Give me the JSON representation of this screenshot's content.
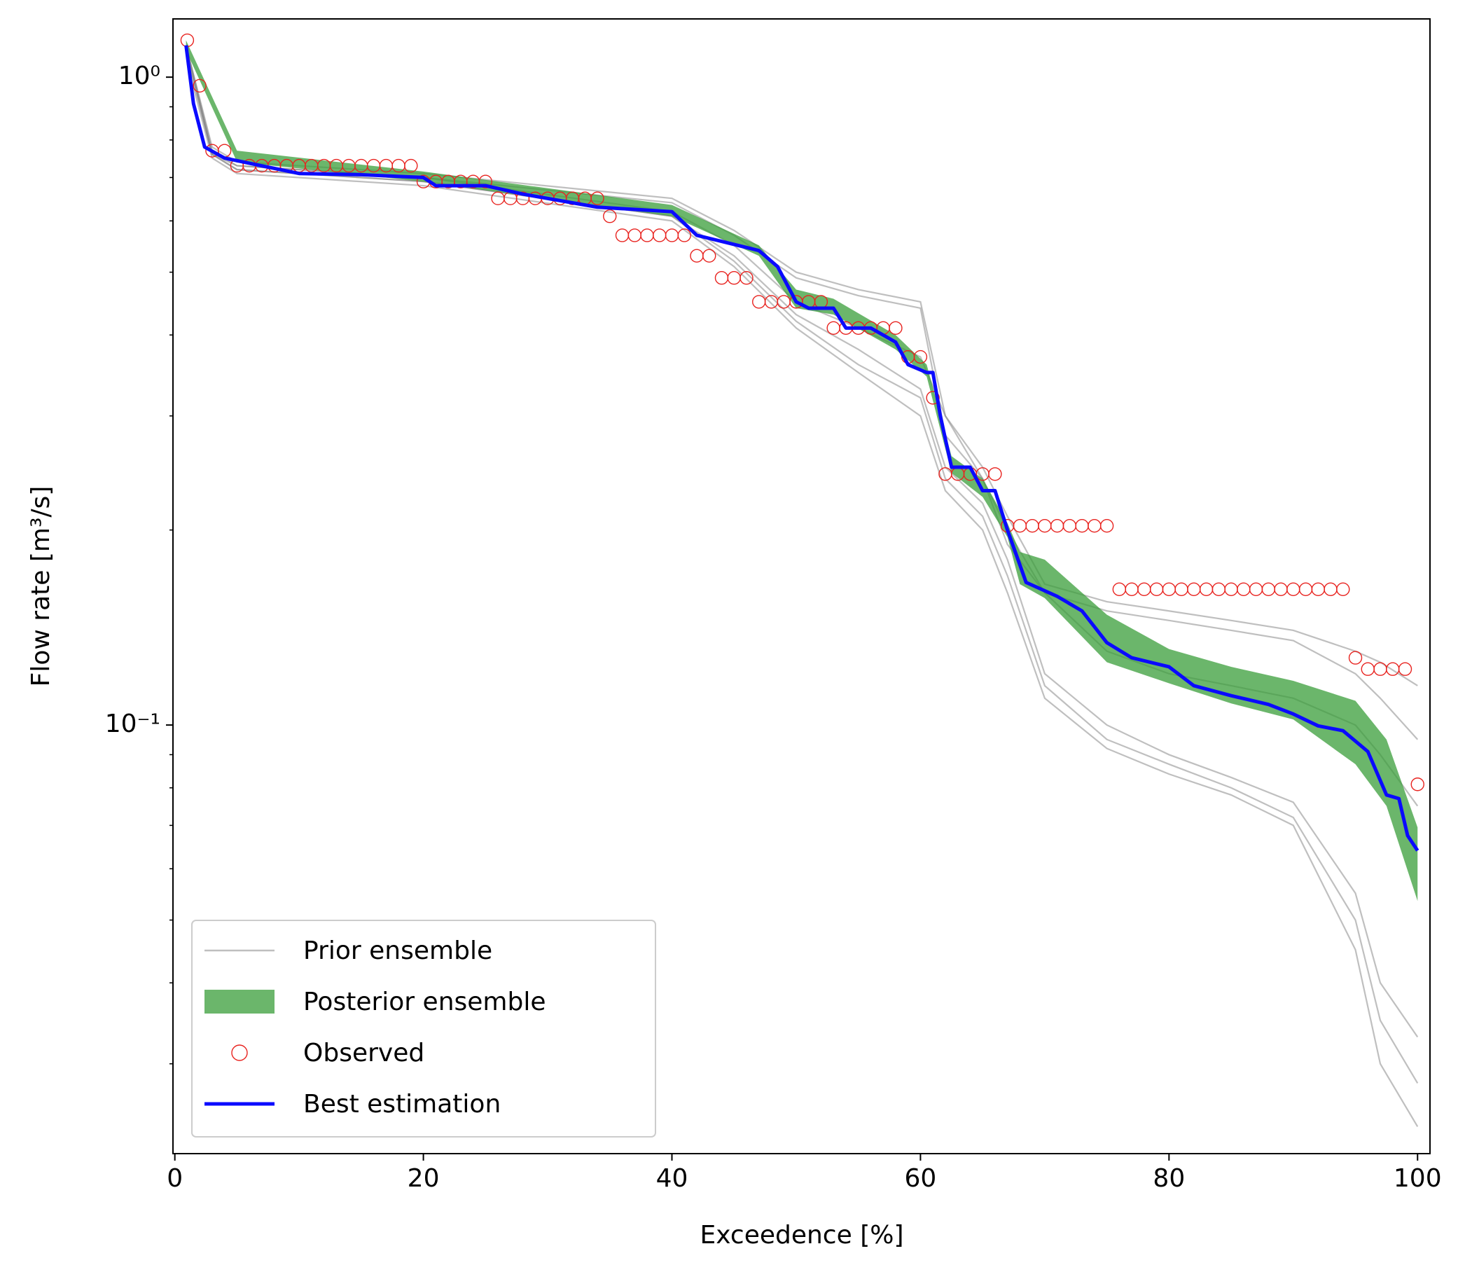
{
  "chart_data": {
    "type": "line",
    "title_x": "Exceedence [%]",
    "title_y": "Flow rate [m³/s]",
    "xlim": [
      -0.15,
      101
    ],
    "xticks": [
      0,
      20,
      40,
      60,
      80,
      100
    ],
    "ylim": [
      0.0218,
      1.23
    ],
    "yscale": "log",
    "yticks": [
      {
        "value": 0.1,
        "label": "10⁻¹"
      },
      {
        "value": 1,
        "label": "10⁰"
      }
    ],
    "yminorticks": [
      0.03,
      0.04,
      0.05,
      0.06,
      0.07,
      0.08,
      0.09,
      0.2,
      0.3,
      0.4,
      0.5,
      0.6,
      0.7,
      0.8,
      0.9
    ],
    "legend": "lower left",
    "series": [
      {
        "name": "Prior ensemble",
        "kind": "lines",
        "color": "#808080",
        "x": [
          1,
          3,
          5,
          20,
          40,
          45,
          50,
          55,
          60,
          62,
          65,
          67,
          70,
          75,
          80,
          85,
          90,
          95,
          97,
          100
        ],
        "lines": [
          [
            1.1,
            0.78,
            0.74,
            0.71,
            0.65,
            0.58,
            0.5,
            0.47,
            0.45,
            0.3,
            0.25,
            0.21,
            0.165,
            0.155,
            0.15,
            0.145,
            0.14,
            0.13,
            0.125,
            0.115
          ],
          [
            1.08,
            0.76,
            0.73,
            0.7,
            0.64,
            0.57,
            0.49,
            0.46,
            0.44,
            0.28,
            0.24,
            0.2,
            0.16,
            0.15,
            0.145,
            0.14,
            0.135,
            0.12,
            0.11,
            0.095
          ],
          [
            1.1,
            0.77,
            0.73,
            0.7,
            0.62,
            0.55,
            0.45,
            0.41,
            0.37,
            0.3,
            0.24,
            0.19,
            0.16,
            0.13,
            0.12,
            0.115,
            0.11,
            0.1,
            0.09,
            0.075
          ],
          [
            1.1,
            0.76,
            0.72,
            0.69,
            0.61,
            0.52,
            0.42,
            0.36,
            0.32,
            0.24,
            0.21,
            0.17,
            0.115,
            0.095,
            0.087,
            0.08,
            0.072,
            0.05,
            0.035,
            0.028
          ],
          [
            1.05,
            0.75,
            0.71,
            0.68,
            0.6,
            0.51,
            0.41,
            0.35,
            0.3,
            0.23,
            0.2,
            0.16,
            0.11,
            0.092,
            0.084,
            0.078,
            0.07,
            0.045,
            0.03,
            0.024
          ],
          [
            1.08,
            0.76,
            0.72,
            0.69,
            0.61,
            0.53,
            0.43,
            0.38,
            0.33,
            0.25,
            0.22,
            0.18,
            0.12,
            0.1,
            0.09,
            0.083,
            0.076,
            0.055,
            0.04,
            0.033
          ]
        ]
      },
      {
        "name": "Posterior ensemble",
        "kind": "band",
        "color": "#3a9e3a",
        "x": [
          0.9,
          5,
          20,
          40,
          47,
          50,
          53,
          58,
          60.5,
          62.5,
          65,
          67,
          68,
          70,
          75,
          80,
          85,
          90,
          95,
          97.5,
          100
        ],
        "upper": [
          1.14,
          0.77,
          0.715,
          0.635,
          0.55,
          0.47,
          0.455,
          0.4,
          0.36,
          0.26,
          0.24,
          0.205,
          0.185,
          0.18,
          0.148,
          0.131,
          0.123,
          0.117,
          0.109,
          0.095,
          0.0695
        ],
        "lower": [
          1.1,
          0.74,
          0.69,
          0.61,
          0.53,
          0.44,
          0.43,
          0.38,
          0.345,
          0.245,
          0.225,
          0.195,
          0.165,
          0.157,
          0.125,
          0.116,
          0.108,
          0.102,
          0.087,
          0.075,
          0.0535
        ]
      },
      {
        "name": "Observed",
        "kind": "points",
        "color": "#e8231f",
        "x": [
          1,
          2,
          3,
          4,
          5,
          6,
          7,
          8,
          9,
          10,
          11,
          12,
          13,
          14,
          15,
          16,
          17,
          18,
          19,
          20,
          21,
          22,
          23,
          24,
          25,
          26,
          27,
          28,
          29,
          30,
          31,
          32,
          33,
          34,
          35,
          36,
          37,
          38,
          39,
          40,
          41,
          42,
          43,
          44,
          45,
          46,
          47,
          48,
          49,
          50,
          51,
          52,
          53,
          54,
          55,
          56,
          57,
          58,
          59,
          60,
          61,
          62,
          63,
          64,
          65,
          66,
          67,
          68,
          69,
          70,
          71,
          72,
          73,
          74,
          75,
          76,
          77,
          78,
          79,
          80,
          81,
          82,
          83,
          84,
          85,
          86,
          87,
          88,
          89,
          90,
          91,
          92,
          93,
          94,
          95,
          96,
          97,
          98,
          99,
          100
        ],
        "values": [
          1.14,
          0.97,
          0.77,
          0.77,
          0.73,
          0.73,
          0.73,
          0.73,
          0.73,
          0.73,
          0.73,
          0.73,
          0.73,
          0.73,
          0.73,
          0.73,
          0.73,
          0.73,
          0.73,
          0.69,
          0.69,
          0.69,
          0.69,
          0.69,
          0.69,
          0.65,
          0.65,
          0.65,
          0.65,
          0.65,
          0.65,
          0.65,
          0.65,
          0.65,
          0.61,
          0.57,
          0.57,
          0.57,
          0.57,
          0.57,
          0.57,
          0.53,
          0.53,
          0.49,
          0.49,
          0.49,
          0.45,
          0.45,
          0.45,
          0.45,
          0.45,
          0.45,
          0.41,
          0.41,
          0.41,
          0.41,
          0.41,
          0.41,
          0.37,
          0.37,
          0.32,
          0.244,
          0.244,
          0.244,
          0.244,
          0.244,
          0.203,
          0.203,
          0.203,
          0.203,
          0.203,
          0.203,
          0.203,
          0.203,
          0.203,
          0.162,
          0.162,
          0.162,
          0.162,
          0.162,
          0.162,
          0.162,
          0.162,
          0.162,
          0.162,
          0.162,
          0.162,
          0.162,
          0.162,
          0.162,
          0.162,
          0.162,
          0.162,
          0.162,
          0.127,
          0.122,
          0.122,
          0.122,
          0.122,
          0.081
        ]
      },
      {
        "name": "Best estimation",
        "kind": "line",
        "color": "#0a0aff",
        "x": [
          0.9,
          1.5,
          2.4,
          4,
          10,
          15,
          20,
          21,
          25,
          28,
          34,
          40,
          42,
          47,
          48.5,
          50,
          51,
          53,
          54,
          56,
          58,
          59,
          60.5,
          61,
          61.6,
          62.5,
          64,
          65,
          66,
          67,
          68.5,
          71,
          73,
          75,
          77,
          80,
          82,
          85,
          88,
          90,
          92,
          94,
          96,
          97.5,
          98.5,
          99.2,
          100
        ],
        "values": [
          1.12,
          0.91,
          0.78,
          0.75,
          0.71,
          0.707,
          0.7,
          0.68,
          0.68,
          0.66,
          0.63,
          0.62,
          0.57,
          0.54,
          0.51,
          0.45,
          0.44,
          0.44,
          0.41,
          0.41,
          0.39,
          0.36,
          0.35,
          0.35,
          0.3,
          0.25,
          0.25,
          0.23,
          0.23,
          0.2,
          0.166,
          0.158,
          0.15,
          0.134,
          0.127,
          0.123,
          0.115,
          0.111,
          0.1076,
          0.104,
          0.0997,
          0.098,
          0.091,
          0.078,
          0.077,
          0.0675,
          0.064
        ]
      }
    ]
  }
}
